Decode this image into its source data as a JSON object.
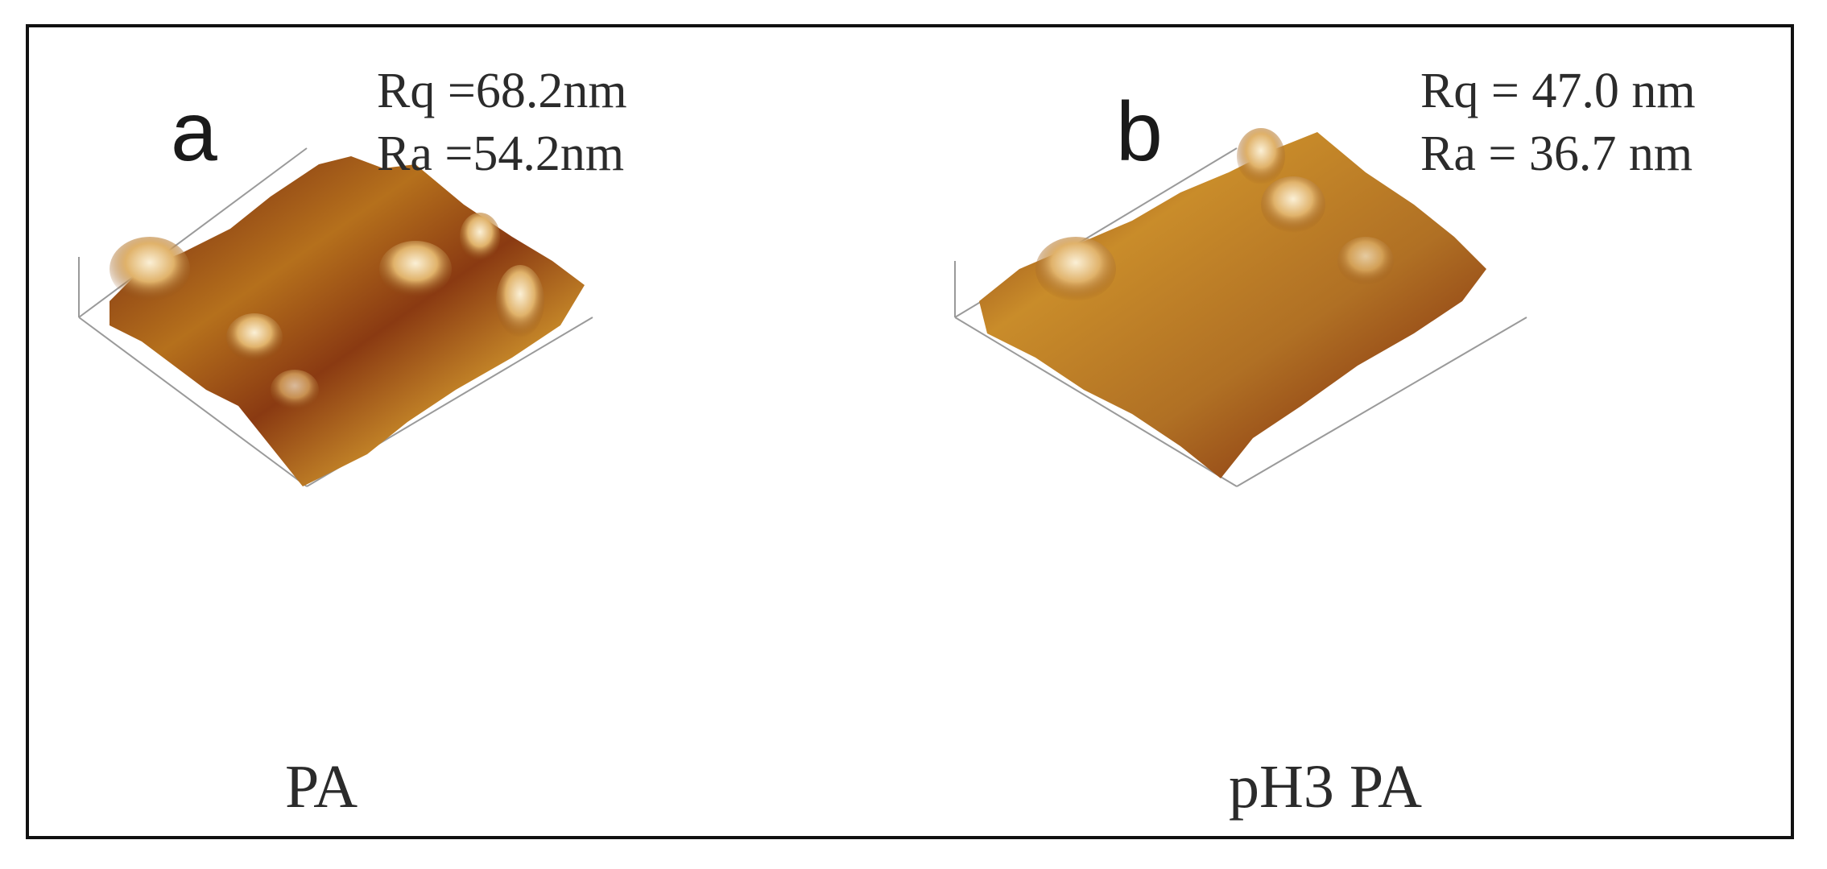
{
  "panels": [
    {
      "letter": "a",
      "rq": "Rq =68.2nm",
      "ra": "Ra =54.2nm",
      "caption": "PA"
    },
    {
      "letter": "b",
      "rq": "Rq = 47.0 nm",
      "ra": "Ra = 36.7 nm",
      "caption": "pH3 PA"
    }
  ],
  "colors": {
    "frame": "#111111",
    "surface_dark": "#5a1a0e",
    "surface_mid": "#b5701c",
    "surface_light": "#f2ddb0",
    "axis": "#9a9a9a"
  }
}
